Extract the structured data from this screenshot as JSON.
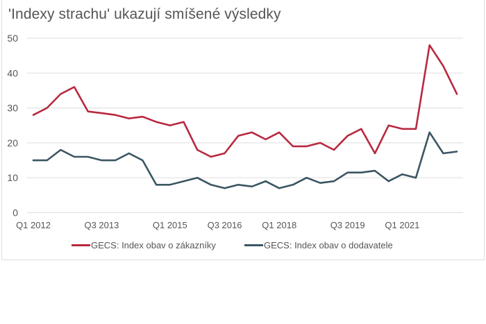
{
  "title": "'Indexy strachu' ukazují smíšené výsledky",
  "colors": {
    "customers": "#b8283f",
    "suppliers": "#3b5563",
    "grid": "#e3e3e3",
    "text": "#555555"
  },
  "legend": {
    "customers": "GECS: Index obav o zákazníky",
    "suppliers": "GECS: Index obav o dodavatele"
  },
  "chart_data": {
    "type": "line",
    "title": "'Indexy strachu' ukazují smíšené výsledky",
    "xlabel": "",
    "ylabel": "",
    "ylim": [
      0,
      50
    ],
    "yticks": [
      0,
      10,
      20,
      30,
      40,
      50
    ],
    "grid": true,
    "legend_position": "bottom",
    "x_tick_labels": [
      {
        "index": 0,
        "label": "Q1 2012"
      },
      {
        "index": 5,
        "label": "Q3 2013"
      },
      {
        "index": 10,
        "label": "Q1 2015"
      },
      {
        "index": 14,
        "label": "Q3 2016"
      },
      {
        "index": 18,
        "label": "Q1 2018"
      },
      {
        "index": 23,
        "label": "Q3 2019"
      },
      {
        "index": 27,
        "label": "Q1 2021"
      }
    ],
    "n_points": 32,
    "series": [
      {
        "name": "GECS: Index obav o zákazníky",
        "color": "#b8283f",
        "values": [
          28,
          30,
          34,
          36,
          29,
          28.5,
          28,
          27,
          27.5,
          26,
          25,
          26,
          18,
          16,
          17,
          22,
          23,
          21,
          23,
          19,
          19,
          20,
          18,
          22,
          24,
          17,
          25,
          24,
          24,
          48,
          42,
          34
        ]
      },
      {
        "name": "GECS: Index obav o dodavatele",
        "color": "#3b5563",
        "values": [
          15,
          15,
          18,
          16,
          16,
          15,
          15,
          17,
          15,
          8,
          8,
          9,
          10,
          8,
          7,
          8,
          7.5,
          9,
          7,
          8,
          10,
          8.5,
          9,
          11.5,
          11.5,
          12,
          9,
          11,
          10,
          23,
          17,
          17.5
        ]
      }
    ]
  }
}
